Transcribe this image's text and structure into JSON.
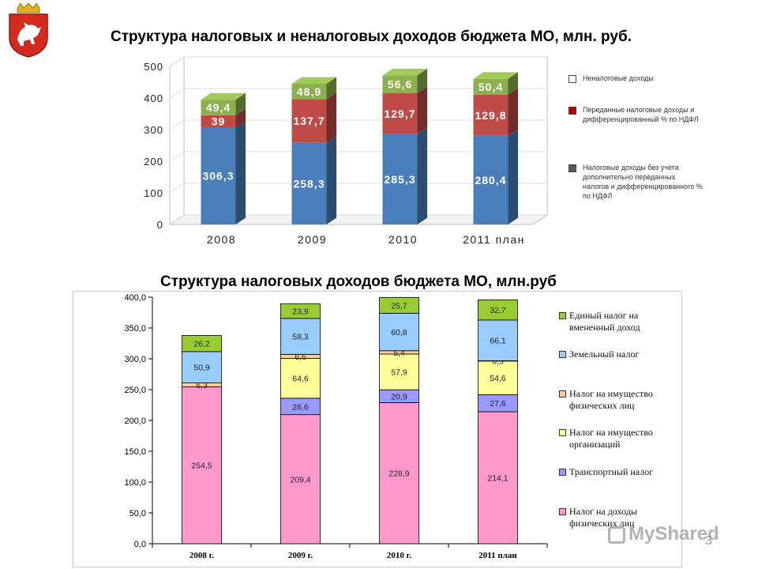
{
  "colors": {
    "c1_tax": "#4a7ebb",
    "c1_transfer": "#be4b48",
    "c1_nontax": "#8cb04f",
    "c2_ndfl": "#ff99cc",
    "c2_transport": "#9999ff",
    "c2_org": "#ffff99",
    "c2_property_phys": "#ffcc99",
    "c2_land": "#99ccff",
    "c2_envd": "#99cc33"
  },
  "logo": {
    "icon": "coat-of-arms-icon"
  },
  "chart1": {
    "title": "Структура налоговых и неналоговых доходов бюджета МО, млн. руб.",
    "legend": [
      {
        "label": "Неналоговые доходы",
        "swatch": "#ffffff"
      },
      {
        "label": "Переданные налоговые доходы и дифференцированный % по НДФЛ",
        "swatch": "#c00000"
      },
      {
        "label": "Налоговые доходы без учета дополнительно переданных налогов и дифференцированного % по НДФЛ",
        "swatch": "#595959"
      }
    ]
  },
  "chart2": {
    "title": "Структура налоговых доходов бюджета МО, млн.руб",
    "legend": [
      {
        "label": "Единый налог на вмененный доход",
        "key": "c2_envd"
      },
      {
        "label": "Земельный налог",
        "key": "c2_land"
      },
      {
        "label": "Налог на имущество физических лиц",
        "key": "c2_property_phys"
      },
      {
        "label": "Налог на имущество организаций",
        "key": "c2_org"
      },
      {
        "label": "Транспортный налог",
        "key": "c2_transport"
      },
      {
        "label": "Налог на доходы физических лиц",
        "key": "c2_ndfl"
      }
    ]
  },
  "watermark": {
    "text": "MyShared",
    "icon": "myshared-logo-icon"
  },
  "page_number": "3",
  "chart_data": [
    {
      "type": "bar",
      "stacked": true,
      "three_d": true,
      "title": "Структура налоговых и неналоговых доходов бюджета МО, млн. руб.",
      "categories": [
        "2008",
        "2009",
        "2010",
        "2011 план"
      ],
      "yticks": [
        "0",
        "100",
        "200",
        "300",
        "400",
        "500"
      ],
      "ylim": [
        0,
        500
      ],
      "series": [
        {
          "values": [
            306.3,
            258.3,
            285.3,
            280.4
          ],
          "labels": [
            "306,3",
            "258,3",
            "285,3",
            "280,4"
          ],
          "color": "#4a7ebb"
        },
        {
          "values": [
            39,
            137.7,
            129.7,
            129.8
          ],
          "labels": [
            "39",
            "137,7",
            "129,7",
            "129,8"
          ],
          "color": "#be4b48"
        },
        {
          "values": [
            49.4,
            48.9,
            56.6,
            50.4
          ],
          "labels": [
            "49,4",
            "48,9",
            "56,6",
            "50,4"
          ],
          "color": "#8cb04f"
        }
      ],
      "legend_position": "right"
    },
    {
      "type": "bar",
      "stacked": true,
      "title": "Структура налоговых доходов бюджета МО, млн.руб",
      "categories": [
        "2008 г.",
        "2009 г.",
        "2010 г.",
        "2011 план"
      ],
      "yticks": [
        "0,0",
        "50,0",
        "100,0",
        "150,0",
        "200,0",
        "250,0",
        "300,0",
        "350,0",
        "400,0"
      ],
      "ylim": [
        0,
        400
      ],
      "series": [
        {
          "name": "Налог на доходы физических лиц",
          "values": [
            254.5,
            209.4,
            228.9,
            214.1
          ],
          "labels": [
            "254,5",
            "209,4",
            "228,9",
            "214,1"
          ],
          "color": "#ff99cc"
        },
        {
          "name": "Транспортный налог",
          "values": [
            0,
            26.6,
            20.9,
            27.6
          ],
          "labels": [
            "",
            "26,6",
            "20,9",
            "27,6"
          ],
          "color": "#9999ff"
        },
        {
          "name": "Налог на имущество организаций",
          "values": [
            0,
            64.6,
            57.9,
            54.6
          ],
          "labels": [
            "",
            "64,6",
            "57,9",
            "54,6"
          ],
          "color": "#ffff99"
        },
        {
          "name": "Налог на имущество физических лиц",
          "values": [
            6.3,
            6.6,
            5.4,
            0.5
          ],
          "labels": [
            "6,3",
            "6,6",
            "5,4",
            "0,5"
          ],
          "color": "#ffcc99"
        },
        {
          "name": "Земельный налог",
          "values": [
            50.9,
            58.3,
            60.8,
            66.1
          ],
          "labels": [
            "50,9",
            "58,3",
            "60,8",
            "66,1"
          ],
          "color": "#99ccff"
        },
        {
          "name": "Единый налог на вмененный доход",
          "values": [
            26.2,
            23.9,
            25.7,
            32.7
          ],
          "labels": [
            "26,2",
            "23,9",
            "25,7",
            "32,7"
          ],
          "color": "#99cc33"
        }
      ],
      "legend_position": "right"
    }
  ]
}
